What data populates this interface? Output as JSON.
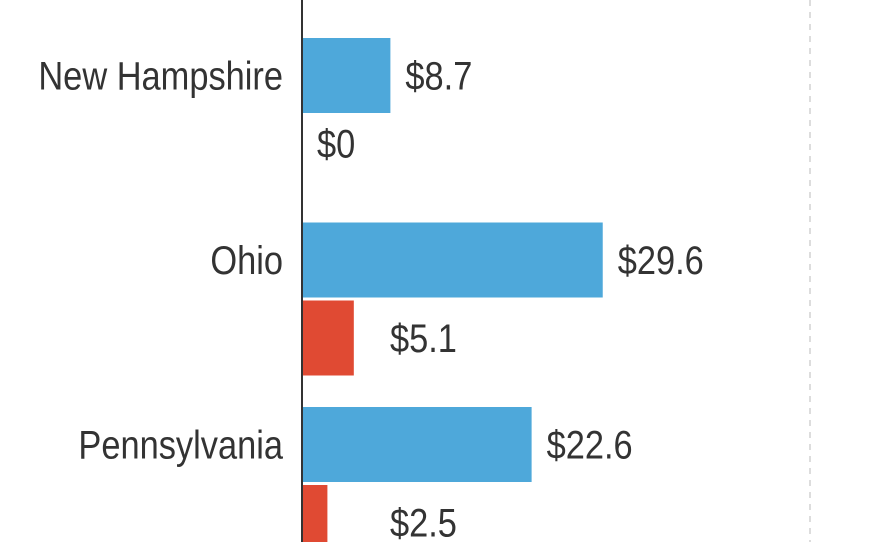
{
  "chart_data": {
    "type": "bar",
    "orientation": "horizontal",
    "categories": [
      "New Hampshire",
      "Ohio",
      "Pennsylvania"
    ],
    "series": [
      {
        "values": [
          8.7,
          29.6,
          22.6
        ],
        "labels": [
          "$8.7",
          "$29.6",
          "$22.6"
        ],
        "color": "#4ea8da"
      },
      {
        "values": [
          0,
          5.1,
          2.5
        ],
        "labels": [
          "$0",
          "$5.1",
          "$2.5"
        ],
        "color": "#e04a33"
      }
    ],
    "xlim": [
      0,
      50
    ],
    "gridlines": [
      50
    ],
    "grid": "dashed vertical",
    "title": "",
    "xlabel": "",
    "ylabel": ""
  }
}
